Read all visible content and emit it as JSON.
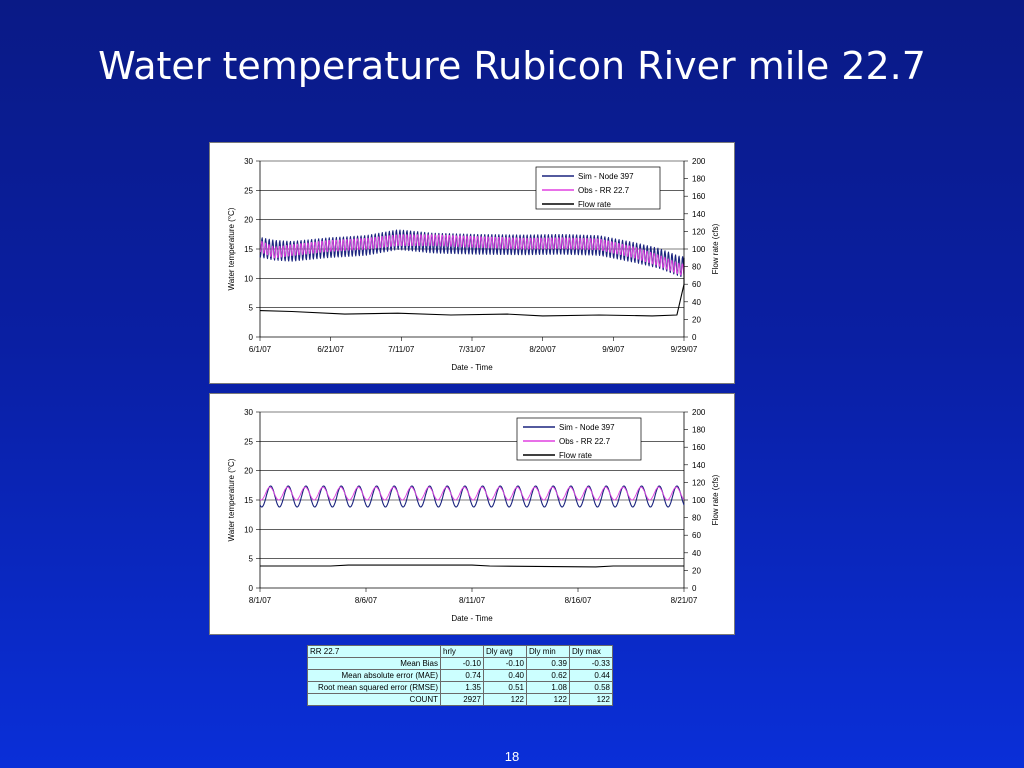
{
  "slide": {
    "title": "Water temperature Rubicon River mile 22.7",
    "page_number": "18"
  },
  "colors": {
    "sim": "#1a237e",
    "obs": "#e040e0",
    "flow": "#000000"
  },
  "chart_data": [
    {
      "type": "line",
      "x_type": "date",
      "xlim": [
        "2007-06-01",
        "2007-09-29"
      ],
      "x_ticks": [
        "6/1/07",
        "6/21/07",
        "7/11/07",
        "7/31/07",
        "8/20/07",
        "9/9/07",
        "9/29/07"
      ],
      "xlabel": "Date - Time",
      "ylabel": "Water temperature (°C)",
      "ylim": [
        0,
        30
      ],
      "y_ticks": [
        "0",
        "5",
        "10",
        "15",
        "20",
        "25",
        "30"
      ],
      "y2label": "Flow rate (cfs)",
      "y2lim": [
        0,
        200
      ],
      "y2_ticks": [
        "0",
        "20",
        "40",
        "60",
        "80",
        "100",
        "120",
        "140",
        "160",
        "180",
        "200"
      ],
      "legend_position": "top-right",
      "legend": [
        "Sim - Node 397",
        "Obs - RR 22.7",
        "Flow  rate"
      ],
      "series": [
        {
          "name": "Sim - Node 397",
          "axis": "left",
          "mean_x": [
            "2007-06-01",
            "2007-06-05",
            "2007-06-10",
            "2007-06-20",
            "2007-07-01",
            "2007-07-10",
            "2007-07-20",
            "2007-08-01",
            "2007-08-15",
            "2007-08-25",
            "2007-09-05",
            "2007-09-15",
            "2007-09-22",
            "2007-09-28"
          ],
          "mean_y": [
            15.3,
            14.8,
            14.6,
            15.2,
            15.6,
            16.6,
            16.0,
            15.8,
            15.7,
            15.8,
            15.6,
            14.4,
            13.4,
            12.0
          ],
          "daily_amplitude": 1.7
        },
        {
          "name": "Obs - RR 22.7",
          "axis": "left",
          "mean_x": [
            "2007-06-01",
            "2007-06-05",
            "2007-06-10",
            "2007-06-20",
            "2007-07-01",
            "2007-07-10",
            "2007-07-20",
            "2007-08-01",
            "2007-08-15",
            "2007-08-25",
            "2007-09-05",
            "2007-09-15",
            "2007-09-22",
            "2007-09-28"
          ],
          "mean_y": [
            15.5,
            14.4,
            14.8,
            15.5,
            15.9,
            16.5,
            16.5,
            16.2,
            15.9,
            16.0,
            15.8,
            14.4,
            13.0,
            11.5
          ],
          "daily_amplitude": 1.0
        },
        {
          "name": "Flow  rate",
          "axis": "right",
          "x": [
            "2007-06-01",
            "2007-06-10",
            "2007-06-25",
            "2007-07-10",
            "2007-07-25",
            "2007-08-10",
            "2007-08-20",
            "2007-09-05",
            "2007-09-20",
            "2007-09-27",
            "2007-09-29",
            "2007-09-30"
          ],
          "y": [
            30,
            29,
            26,
            27,
            25,
            26,
            24,
            25,
            24,
            25,
            60,
            90
          ]
        }
      ]
    },
    {
      "type": "line",
      "x_type": "date",
      "xlim": [
        "2007-08-01",
        "2007-08-25"
      ],
      "x_ticks": [
        "8/1/07",
        "8/6/07",
        "8/11/07",
        "8/16/07",
        "8/21/07"
      ],
      "xlabel": "Date - Time",
      "ylabel": "Water temperature (°C)",
      "ylim": [
        0,
        30
      ],
      "y_ticks": [
        "0",
        "5",
        "10",
        "15",
        "20",
        "25",
        "30"
      ],
      "y2label": "Flow rate (cfs)",
      "y2lim": [
        0,
        200
      ],
      "y2_ticks": [
        "0",
        "20",
        "40",
        "60",
        "80",
        "100",
        "120",
        "140",
        "160",
        "180",
        "200"
      ],
      "legend_position": "top-right",
      "legend": [
        "Sim - Node 397",
        "Obs - RR 22.7",
        "Flow  rate"
      ],
      "series": [
        {
          "name": "Sim - Node 397",
          "axis": "left",
          "mean_x": [
            "2007-08-01",
            "2007-08-25"
          ],
          "mean_y": [
            15.6,
            15.6
          ],
          "daily_amplitude": 1.8
        },
        {
          "name": "Obs - RR 22.7",
          "axis": "left",
          "mean_x": [
            "2007-08-01",
            "2007-08-25"
          ],
          "mean_y": [
            16.1,
            16.1
          ],
          "daily_amplitude": 1.1
        },
        {
          "name": "Flow  rate",
          "axis": "right",
          "x": [
            "2007-08-01",
            "2007-08-05",
            "2007-08-06",
            "2007-08-13",
            "2007-08-14",
            "2007-08-20",
            "2007-08-21",
            "2007-08-25"
          ],
          "y": [
            25,
            25,
            26,
            26,
            25,
            24,
            25,
            25
          ]
        }
      ]
    }
  ],
  "stats_table": {
    "header": [
      "RR 22.7",
      "hrly",
      "Dly avg",
      "Dly min",
      "Dly max"
    ],
    "rows": [
      [
        "Mean Bias",
        "-0.10",
        "-0.10",
        "0.39",
        "-0.33"
      ],
      [
        "Mean absolute error (MAE)",
        "0.74",
        "0.40",
        "0.62",
        "0.44"
      ],
      [
        "Root mean squared error (RMSE)",
        "1.35",
        "0.51",
        "1.08",
        "0.58"
      ],
      [
        "COUNT",
        "2927",
        "122",
        "122",
        "122"
      ]
    ]
  }
}
